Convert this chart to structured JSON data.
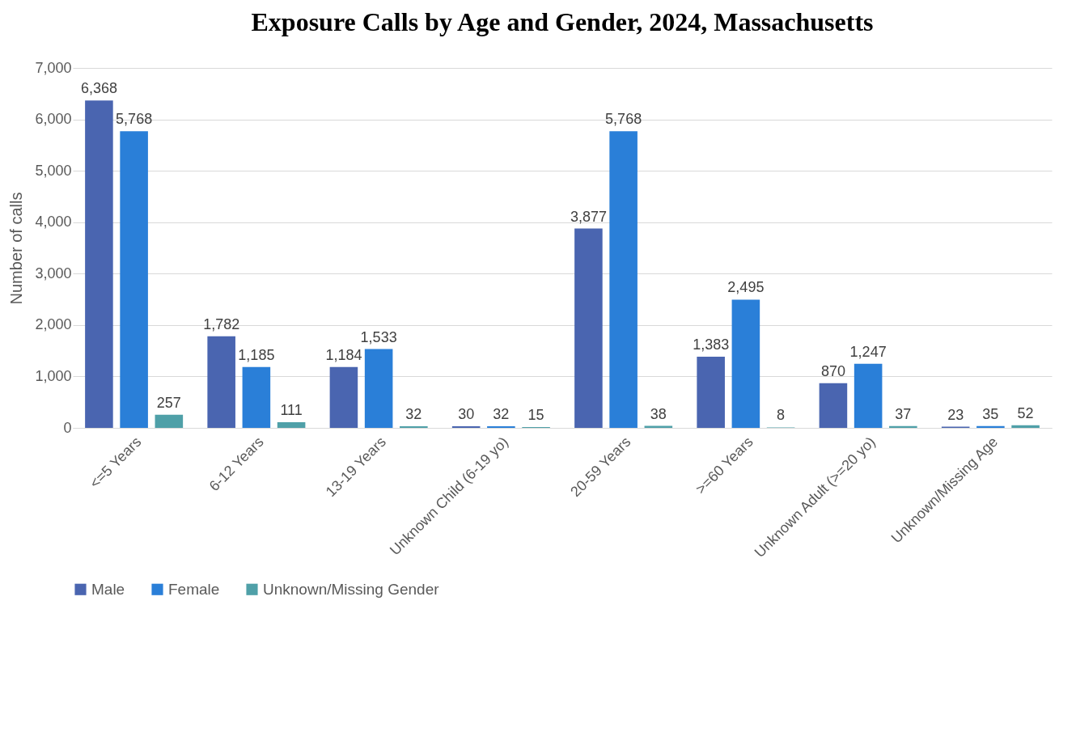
{
  "chart_data": {
    "type": "bar",
    "title": "Exposure Calls by Age and Gender, 2024, Massachusetts",
    "ylabel": "Number of calls",
    "categories": [
      "<=5 Years",
      "6-12 Years",
      "13-19 Years",
      "Unknown Child (6-19 yo)",
      "20-59 Years",
      ">=60 Years",
      "Unknown Adult (>=20 yo)",
      "Unknown/Missing Age"
    ],
    "series": [
      {
        "name": "Male",
        "color": "#4a65b0",
        "values": [
          6368,
          1782,
          1184,
          30,
          3877,
          1383,
          870,
          23
        ],
        "value_labels": [
          "6,368",
          "1,782",
          "1,184",
          "30",
          "3,877",
          "1,383",
          "870",
          "23"
        ]
      },
      {
        "name": "Female",
        "color": "#2a7fd8",
        "values": [
          5768,
          1185,
          1533,
          32,
          5768,
          2495,
          1247,
          35
        ],
        "value_labels": [
          "5,768",
          "1,185",
          "1,533",
          "32",
          "5,768",
          "2,495",
          "1,247",
          "35"
        ]
      },
      {
        "name": "Unknown/Missing Gender",
        "color": "#4fa0a8",
        "values": [
          257,
          111,
          32,
          15,
          38,
          8,
          37,
          52
        ],
        "value_labels": [
          "257",
          "111",
          "32",
          "15",
          "38",
          "8",
          "37",
          "52"
        ]
      }
    ],
    "ylim": [
      0,
      7000
    ],
    "yticks": [
      {
        "value": 0,
        "label": "0"
      },
      {
        "value": 1000,
        "label": "1,000"
      },
      {
        "value": 2000,
        "label": "2,000"
      },
      {
        "value": 3000,
        "label": "3,000"
      },
      {
        "value": 4000,
        "label": "4,000"
      },
      {
        "value": 5000,
        "label": "5,000"
      },
      {
        "value": 6000,
        "label": "6,000"
      },
      {
        "value": 7000,
        "label": "7,000"
      }
    ],
    "grid": "y",
    "legend": "bottom"
  }
}
